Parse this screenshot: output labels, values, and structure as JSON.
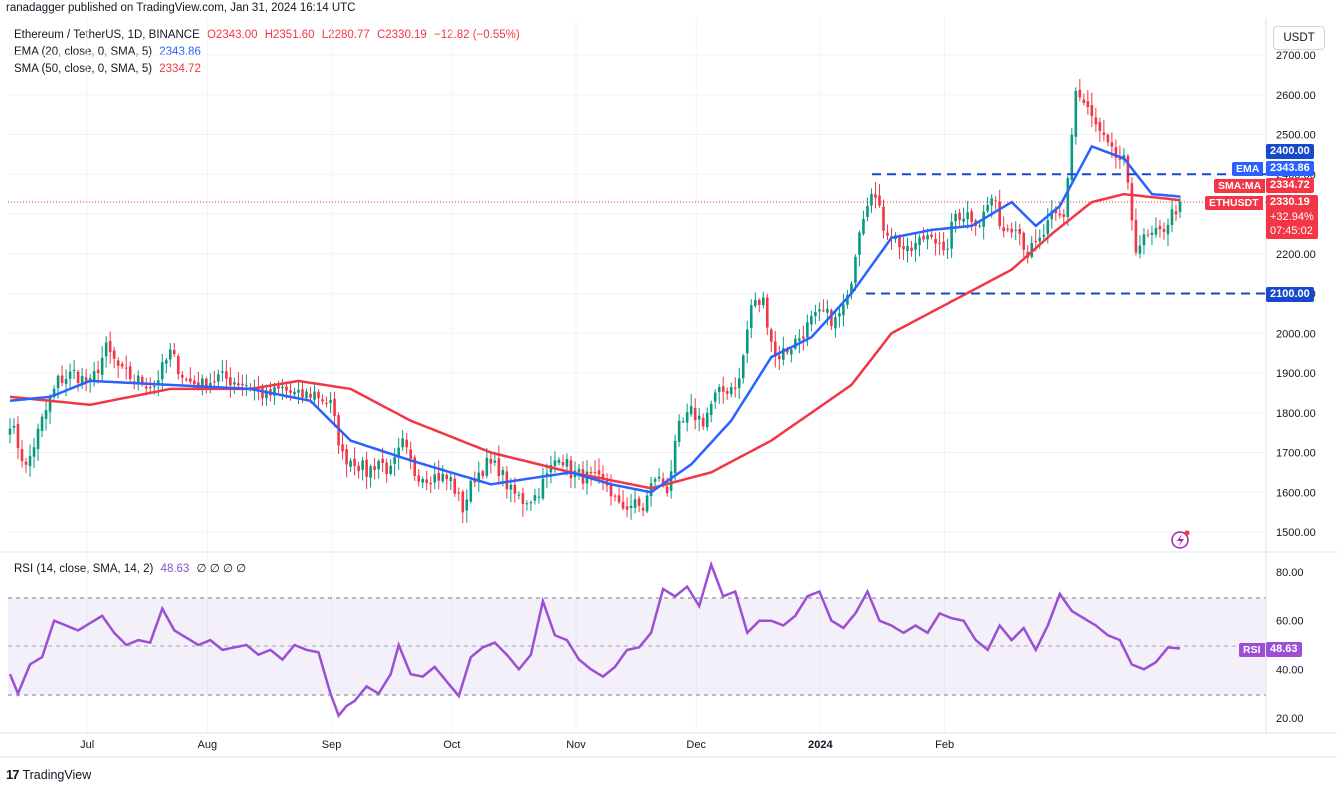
{
  "header": {
    "publisher_line": "ranadagger published on TradingView.com, Jan 31, 2024 16:14 UTC"
  },
  "legend": {
    "symbol": "Ethereum / TetherUS, 1D, BINANCE",
    "ohlc": {
      "o": "O2343.00",
      "h": "H2351.60",
      "l": "L2280.77",
      "c": "C2330.19",
      "chg": "−12.82 (−0.55%)"
    },
    "ema_label": "EMA (20, close, 0, SMA, 5)",
    "ema_value": "2343.86",
    "sma_label": "SMA (50, close, 0, SMA, 5)",
    "sma_value": "2334.72",
    "rsi_label": "RSI (14, close, SMA, 14, 2)",
    "rsi_value": "48.63",
    "rsi_extra": "∅ ∅ ∅ ∅"
  },
  "toolbar": {
    "unit_button": "USDT"
  },
  "footer": {
    "brand": "TradingView"
  },
  "colors": {
    "up": "#089981",
    "down": "#f23645",
    "ema": "#2962ff",
    "sma": "#f23645",
    "rsi": "#7e57c2",
    "rsi_band": "#7e57c2"
  },
  "price_labels": {
    "level_2400": "2400.00",
    "ema_tag": "EMA",
    "ema": "2343.86",
    "sma_tag": "SMA:MA",
    "sma": "2334.72",
    "sym_tag": "ETHUSDT",
    "last": "2330.19",
    "pct": "+32.94%",
    "countdown": "07:45:02",
    "level_2100": "2100.00",
    "rsi_tag": "RSI",
    "rsi": "48.63"
  },
  "chart_data": {
    "type": "candlestick",
    "price_axis": {
      "ticks": [
        "2700.00",
        "2600.00",
        "2500.00",
        "2400.00",
        "2300.00",
        "2200.00",
        "2100.00",
        "2000.00",
        "1900.00",
        "1800.00",
        "1700.00",
        "1600.00",
        "1500.00"
      ],
      "range": [
        1470,
        2735
      ]
    },
    "rsi_axis": {
      "ticks": [
        "80.00",
        "60.00",
        "40.00",
        "20.00"
      ],
      "range": [
        15,
        88
      ],
      "band": [
        30,
        70
      ],
      "mid": 50
    },
    "time_axis": [
      "Jul",
      "Aug",
      "Sep",
      "Oct",
      "Nov",
      "Dec",
      "2024",
      "Feb"
    ],
    "horizontal_levels": [
      {
        "label": "2400.00",
        "value": 2400
      },
      {
        "label": "2100.00",
        "value": 2100
      }
    ],
    "close_anchors": [
      [
        0,
        1780
      ],
      [
        4,
        1660
      ],
      [
        8,
        1780
      ],
      [
        12,
        1880
      ],
      [
        16,
        1900
      ],
      [
        20,
        1870
      ],
      [
        24,
        1960
      ],
      [
        28,
        1900
      ],
      [
        32,
        1880
      ],
      [
        36,
        1870
      ],
      [
        40,
        1950
      ],
      [
        44,
        1880
      ],
      [
        48,
        1870
      ],
      [
        52,
        1890
      ],
      [
        56,
        1880
      ],
      [
        60,
        1870
      ],
      [
        64,
        1840
      ],
      [
        68,
        1860
      ],
      [
        72,
        1840
      ],
      [
        76,
        1850
      ],
      [
        80,
        1820
      ],
      [
        83,
        1690
      ],
      [
        86,
        1680
      ],
      [
        89,
        1650
      ],
      [
        92,
        1680
      ],
      [
        95,
        1650
      ],
      [
        98,
        1720
      ],
      [
        101,
        1650
      ],
      [
        104,
        1640
      ],
      [
        107,
        1640
      ],
      [
        110,
        1630
      ],
      [
        113,
        1560
      ],
      [
        116,
        1640
      ],
      [
        119,
        1670
      ],
      [
        122,
        1660
      ],
      [
        125,
        1600
      ],
      [
        128,
        1580
      ],
      [
        131,
        1590
      ],
      [
        134,
        1640
      ],
      [
        137,
        1700
      ],
      [
        140,
        1650
      ],
      [
        143,
        1640
      ],
      [
        146,
        1630
      ],
      [
        149,
        1620
      ],
      [
        152,
        1560
      ],
      [
        155,
        1570
      ],
      [
        158,
        1560
      ],
      [
        161,
        1640
      ],
      [
        164,
        1610
      ],
      [
        167,
        1760
      ],
      [
        170,
        1800
      ],
      [
        173,
        1780
      ],
      [
        176,
        1840
      ],
      [
        179,
        1860
      ],
      [
        182,
        1880
      ],
      [
        185,
        2070
      ],
      [
        188,
        2080
      ],
      [
        191,
        1940
      ],
      [
        194,
        1960
      ],
      [
        197,
        1990
      ],
      [
        200,
        2030
      ],
      [
        203,
        2050
      ],
      [
        206,
        2030
      ],
      [
        209,
        2080
      ],
      [
        212,
        2270
      ],
      [
        215,
        2370
      ],
      [
        218,
        2270
      ],
      [
        221,
        2240
      ],
      [
        224,
        2200
      ],
      [
        227,
        2230
      ],
      [
        230,
        2260
      ],
      [
        233,
        2190
      ],
      [
        236,
        2300
      ],
      [
        239,
        2300
      ],
      [
        242,
        2280
      ],
      [
        245,
        2340
      ],
      [
        248,
        2260
      ],
      [
        251,
        2280
      ],
      [
        254,
        2200
      ],
      [
        257,
        2230
      ],
      [
        260,
        2290
      ],
      [
        263,
        2290
      ],
      [
        266,
        2610
      ],
      [
        269,
        2560
      ],
      [
        272,
        2500
      ],
      [
        275,
        2450
      ],
      [
        278,
        2430
      ],
      [
        281,
        2220
      ],
      [
        284,
        2240
      ],
      [
        287,
        2250
      ],
      [
        290,
        2300
      ],
      [
        292,
        2330
      ]
    ],
    "ema20_anchors": [
      [
        0,
        1830
      ],
      [
        10,
        1840
      ],
      [
        20,
        1880
      ],
      [
        40,
        1870
      ],
      [
        60,
        1860
      ],
      [
        75,
        1830
      ],
      [
        85,
        1730
      ],
      [
        100,
        1680
      ],
      [
        120,
        1620
      ],
      [
        140,
        1650
      ],
      [
        150,
        1620
      ],
      [
        160,
        1600
      ],
      [
        170,
        1670
      ],
      [
        180,
        1780
      ],
      [
        190,
        1940
      ],
      [
        200,
        1990
      ],
      [
        210,
        2100
      ],
      [
        220,
        2240
      ],
      [
        230,
        2260
      ],
      [
        240,
        2270
      ],
      [
        250,
        2330
      ],
      [
        256,
        2270
      ],
      [
        262,
        2320
      ],
      [
        270,
        2470
      ],
      [
        278,
        2440
      ],
      [
        285,
        2350
      ],
      [
        292,
        2344
      ]
    ],
    "sma50_anchors": [
      [
        0,
        1840
      ],
      [
        20,
        1820
      ],
      [
        40,
        1860
      ],
      [
        60,
        1860
      ],
      [
        72,
        1880
      ],
      [
        85,
        1860
      ],
      [
        100,
        1780
      ],
      [
        120,
        1700
      ],
      [
        140,
        1650
      ],
      [
        160,
        1610
      ],
      [
        175,
        1650
      ],
      [
        190,
        1730
      ],
      [
        200,
        1800
      ],
      [
        210,
        1870
      ],
      [
        220,
        2000
      ],
      [
        235,
        2080
      ],
      [
        250,
        2160
      ],
      [
        260,
        2250
      ],
      [
        270,
        2330
      ],
      [
        278,
        2350
      ],
      [
        292,
        2335
      ]
    ],
    "rsi_anchors": [
      [
        0,
        38
      ],
      [
        2,
        30
      ],
      [
        5,
        42
      ],
      [
        8,
        45
      ],
      [
        11,
        60
      ],
      [
        14,
        58
      ],
      [
        17,
        56
      ],
      [
        20,
        59
      ],
      [
        23,
        62
      ],
      [
        26,
        55
      ],
      [
        29,
        50
      ],
      [
        32,
        52
      ],
      [
        35,
        51
      ],
      [
        38,
        65
      ],
      [
        41,
        56
      ],
      [
        44,
        53
      ],
      [
        47,
        50
      ],
      [
        50,
        52
      ],
      [
        53,
        48
      ],
      [
        56,
        49
      ],
      [
        59,
        50
      ],
      [
        62,
        46
      ],
      [
        65,
        48
      ],
      [
        68,
        44
      ],
      [
        71,
        50
      ],
      [
        74,
        48
      ],
      [
        77,
        47
      ],
      [
        80,
        30
      ],
      [
        82,
        21
      ],
      [
        84,
        25
      ],
      [
        86,
        27
      ],
      [
        89,
        33
      ],
      [
        92,
        30
      ],
      [
        95,
        38
      ],
      [
        97,
        50
      ],
      [
        100,
        38
      ],
      [
        103,
        37
      ],
      [
        106,
        41
      ],
      [
        109,
        35
      ],
      [
        112,
        29
      ],
      [
        115,
        45
      ],
      [
        118,
        49
      ],
      [
        121,
        51
      ],
      [
        124,
        46
      ],
      [
        127,
        40
      ],
      [
        130,
        46
      ],
      [
        133,
        68
      ],
      [
        136,
        54
      ],
      [
        139,
        52
      ],
      [
        142,
        44
      ],
      [
        145,
        40
      ],
      [
        148,
        37
      ],
      [
        151,
        41
      ],
      [
        154,
        48
      ],
      [
        157,
        49
      ],
      [
        160,
        55
      ],
      [
        163,
        73
      ],
      [
        166,
        70
      ],
      [
        169,
        74
      ],
      [
        172,
        66
      ],
      [
        175,
        83
      ],
      [
        178,
        70
      ],
      [
        181,
        72
      ],
      [
        184,
        55
      ],
      [
        187,
        60
      ],
      [
        190,
        60
      ],
      [
        193,
        58
      ],
      [
        196,
        62
      ],
      [
        199,
        70
      ],
      [
        202,
        72
      ],
      [
        205,
        60
      ],
      [
        208,
        57
      ],
      [
        211,
        63
      ],
      [
        214,
        72
      ],
      [
        217,
        60
      ],
      [
        220,
        58
      ],
      [
        223,
        55
      ],
      [
        226,
        58
      ],
      [
        229,
        55
      ],
      [
        232,
        63
      ],
      [
        235,
        61
      ],
      [
        238,
        60
      ],
      [
        241,
        52
      ],
      [
        244,
        48
      ],
      [
        247,
        58
      ],
      [
        250,
        52
      ],
      [
        253,
        57
      ],
      [
        256,
        48
      ],
      [
        259,
        58
      ],
      [
        262,
        71
      ],
      [
        265,
        64
      ],
      [
        268,
        61
      ],
      [
        271,
        58
      ],
      [
        274,
        54
      ],
      [
        277,
        52
      ],
      [
        280,
        42
      ],
      [
        283,
        40
      ],
      [
        286,
        43
      ],
      [
        289,
        49
      ],
      [
        292,
        48.6
      ]
    ],
    "ema20_last": 2343.86,
    "sma50_last": 2334.72,
    "last_close": 2330.19,
    "rsi_last": 48.63,
    "change_pct_since_dec": "+32.94%"
  }
}
